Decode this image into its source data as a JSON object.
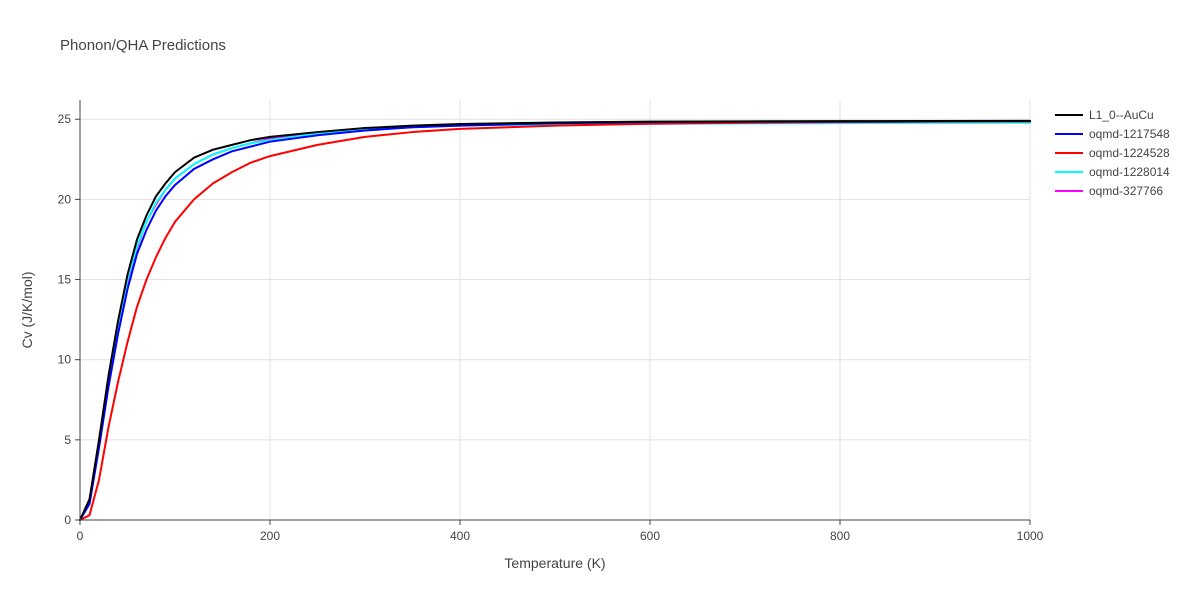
{
  "chart_data": {
    "type": "line",
    "title": "Phonon/QHA Predictions",
    "xlabel": "Temperature (K)",
    "ylabel": "Cv (J/K/mol)",
    "xlim": [
      0,
      1000
    ],
    "ylim": [
      0,
      26.2
    ],
    "xticks": [
      0,
      200,
      400,
      600,
      800,
      1000
    ],
    "yticks": [
      0,
      5,
      10,
      15,
      20,
      25
    ],
    "grid": true,
    "legend_position": "top-right",
    "x": [
      0,
      10,
      20,
      30,
      40,
      50,
      60,
      70,
      80,
      90,
      100,
      120,
      140,
      160,
      180,
      200,
      250,
      300,
      350,
      400,
      500,
      600,
      700,
      800,
      900,
      1000
    ],
    "series": [
      {
        "name": "L1_0--AuCu",
        "color": "#000000",
        "values": [
          0,
          1.3,
          5.0,
          9.0,
          12.4,
          15.3,
          17.5,
          19.0,
          20.2,
          21.0,
          21.7,
          22.6,
          23.1,
          23.4,
          23.7,
          23.9,
          24.2,
          24.45,
          24.6,
          24.7,
          24.8,
          24.85,
          24.87,
          24.88,
          24.89,
          24.9
        ]
      },
      {
        "name": "oqmd-1217548",
        "color": "#0000ff",
        "values": [
          0,
          1.0,
          4.5,
          8.3,
          11.6,
          14.4,
          16.6,
          18.1,
          19.3,
          20.2,
          20.9,
          21.9,
          22.5,
          23.0,
          23.3,
          23.6,
          24.0,
          24.3,
          24.5,
          24.6,
          24.75,
          24.82,
          24.85,
          24.87,
          24.88,
          24.89
        ]
      },
      {
        "name": "oqmd-1224528",
        "color": "#ff0000",
        "values": [
          0,
          0.3,
          2.5,
          5.8,
          8.6,
          11.1,
          13.3,
          15.0,
          16.4,
          17.6,
          18.6,
          20.0,
          21.0,
          21.7,
          22.3,
          22.7,
          23.4,
          23.9,
          24.2,
          24.4,
          24.6,
          24.72,
          24.78,
          24.82,
          24.85,
          24.87
        ]
      },
      {
        "name": "oqmd-1228014",
        "color": "#00ffff",
        "values": [
          0,
          1.2,
          4.9,
          8.9,
          12.2,
          15.0,
          17.1,
          18.6,
          19.8,
          20.6,
          21.3,
          22.2,
          22.8,
          23.2,
          23.5,
          23.7,
          24.1,
          24.35,
          24.5,
          24.6,
          24.68,
          24.72,
          24.74,
          24.76,
          24.77,
          24.78
        ]
      },
      {
        "name": "oqmd-327766",
        "color": "#ff00ff",
        "values": [
          0,
          1.2,
          4.8,
          8.8,
          12.1,
          14.9,
          17.0,
          18.6,
          19.7,
          20.6,
          21.3,
          22.2,
          22.8,
          23.2,
          23.5,
          23.8,
          24.1,
          24.35,
          24.55,
          24.65,
          24.75,
          24.8,
          24.83,
          24.85,
          24.87,
          24.88
        ]
      }
    ]
  }
}
